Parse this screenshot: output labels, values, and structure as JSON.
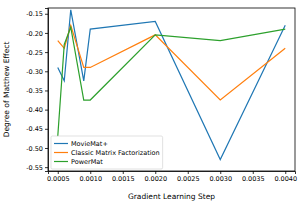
{
  "chart_data": {
    "type": "line",
    "x_label": "Gradient Learning Step",
    "y_label": "Degree of Matthew Effect",
    "x": [
      0.0005,
      0.0006,
      0.0007,
      0.0009,
      0.001,
      0.002,
      0.003,
      0.004
    ],
    "series": [
      {
        "name": "MovieMat+",
        "color": "#1f77b4",
        "values": [
          -0.29,
          -0.325,
          -0.14,
          -0.325,
          -0.19,
          -0.17,
          -0.53,
          -0.18
        ]
      },
      {
        "name": "Classic Matrix Factorization",
        "color": "#ff7f0e",
        "values": [
          -0.22,
          -0.24,
          -0.18,
          -0.29,
          -0.29,
          -0.205,
          -0.375,
          -0.24
        ]
      },
      {
        "name": "PowerMat",
        "color": "#2ca02c",
        "values": [
          -0.47,
          -0.23,
          -0.185,
          -0.375,
          -0.375,
          -0.205,
          -0.22,
          -0.19
        ]
      }
    ],
    "xlim": [
      0.00035,
      0.00415
    ],
    "ylim": [
      -0.56,
      -0.135
    ],
    "xticks": [
      0.0005,
      {
        "value": 0.001,
        "label": "0.0010"
      },
      0.0015,
      {
        "value": 0.002,
        "label": "0.0020"
      },
      0.0025,
      {
        "value": 0.003,
        "label": "0.0030"
      },
      0.0035,
      {
        "value": 0.004,
        "label": "0.0040"
      }
    ],
    "yticks": [
      -0.55,
      {
        "value": -0.5,
        "label": "-0.50"
      },
      -0.45,
      {
        "value": -0.4,
        "label": "-0.40"
      },
      -0.35,
      {
        "value": -0.3,
        "label": "-0.30"
      },
      -0.25,
      {
        "value": -0.2,
        "label": "-0.20"
      },
      -0.15
    ],
    "grid": false,
    "legend": "lower left"
  }
}
